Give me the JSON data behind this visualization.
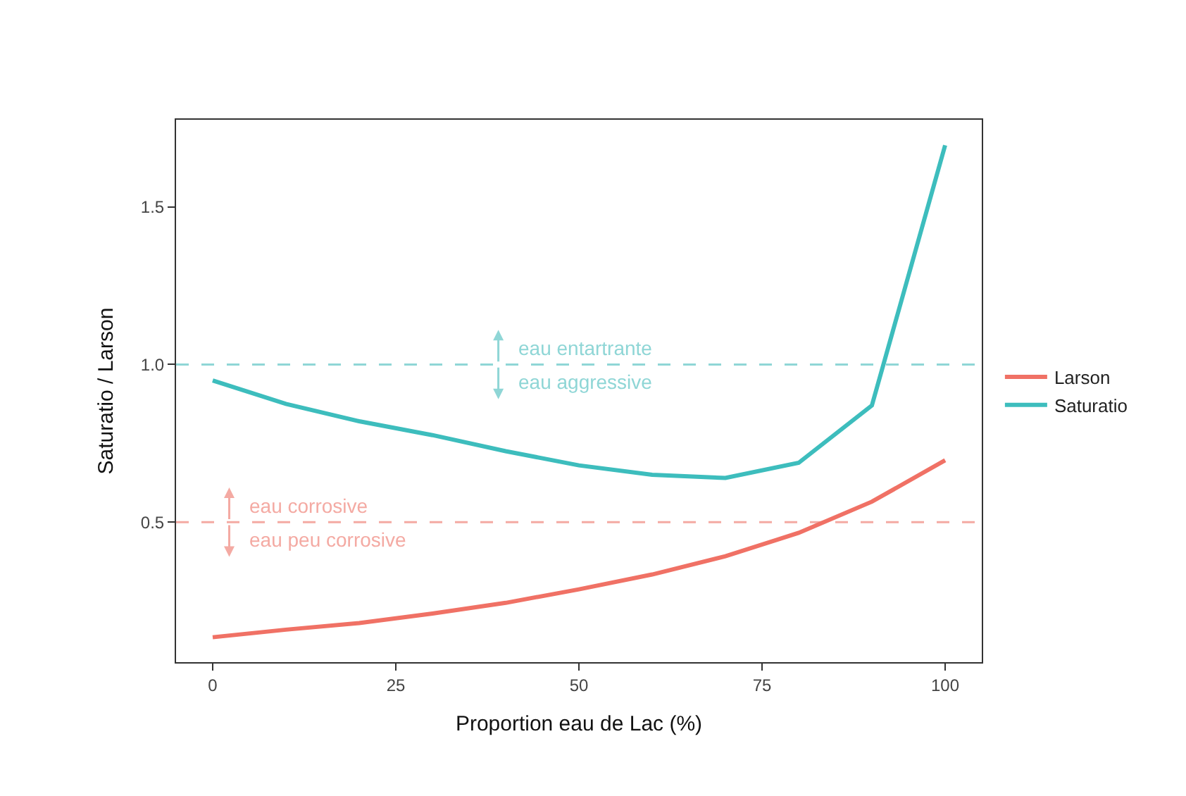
{
  "chart_data": {
    "type": "line",
    "xlabel": "Proportion eau de Lac (%)",
    "ylabel": "Saturatio / Larson",
    "x": [
      0,
      10,
      20,
      30,
      40,
      50,
      60,
      70,
      80,
      90,
      100
    ],
    "series": [
      {
        "name": "Larson",
        "color": "#f07165",
        "values": [
          0.135,
          0.159,
          0.18,
          0.21,
          0.244,
          0.287,
          0.334,
          0.392,
          0.466,
          0.565,
          0.696
        ]
      },
      {
        "name": "Saturatio",
        "color": "#3dbdbd",
        "values": [
          0.949,
          0.875,
          0.82,
          0.776,
          0.725,
          0.68,
          0.65,
          0.64,
          0.688,
          0.87,
          1.695
        ]
      }
    ],
    "xlim": [
      -5,
      105
    ],
    "ylim": [
      0.056,
      1.776
    ],
    "xticks": [
      0,
      25,
      50,
      75,
      100
    ],
    "yticks": [
      {
        "value": 0.5,
        "label": "0.5"
      },
      {
        "value": 1.0,
        "label": "1.0"
      },
      {
        "value": 1.5,
        "label": "1.5"
      }
    ],
    "ref_lines": [
      {
        "axis": "y",
        "value": 1.0,
        "color": "#8fd6d6",
        "line_style": "dashed"
      },
      {
        "axis": "y",
        "value": 0.5,
        "color": "#f4aaa3",
        "line_style": "dashed"
      }
    ],
    "annotations": [
      "eau entartrante",
      "eau aggressive",
      "eau corrosive",
      "eau peu corrosive"
    ],
    "grid": false,
    "legend": "right",
    "line_style": "solid",
    "marker": "none"
  }
}
